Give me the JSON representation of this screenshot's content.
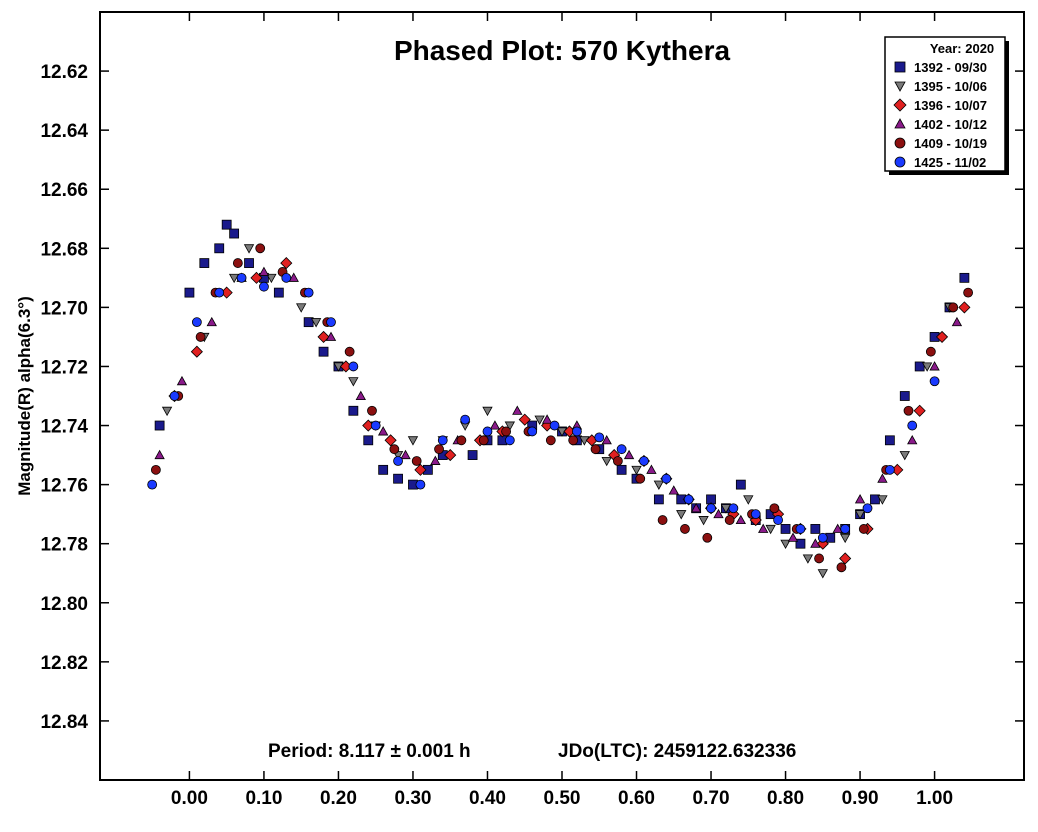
{
  "chart_data": {
    "type": "scatter",
    "title": "Phased Plot: 570 Kythera",
    "ylabel": "Magnitude(R) alpha(6.3°)",
    "xlabel": "",
    "xlim": [
      -0.12,
      1.12
    ],
    "ylim": [
      12.86,
      12.6
    ],
    "y_inverted": true,
    "grid": false,
    "x_ticks": [
      "0.00",
      "0.10",
      "0.20",
      "0.30",
      "0.40",
      "0.50",
      "0.60",
      "0.70",
      "0.80",
      "0.90",
      "1.00"
    ],
    "y_ticks": [
      "12.62",
      "12.64",
      "12.66",
      "12.68",
      "12.70",
      "12.72",
      "12.74",
      "12.76",
      "12.78",
      "12.80",
      "12.82",
      "12.84"
    ],
    "legend": {
      "position": "top-right",
      "title": "Year: 2020",
      "entries": [
        "1392 - 09/30",
        "1395 - 10/06",
        "1396 - 10/07",
        "1402 - 10/12",
        "1409 - 10/19",
        "1425 - 11/02"
      ]
    },
    "annotations": {
      "period": "Period: 8.117 ± 0.001 h",
      "epoch": "JDo(LTC): 2459122.632336"
    },
    "series": [
      {
        "name": "1392 - 09/30",
        "marker": "square",
        "color": "#1a1a8c",
        "x": [
          -0.04,
          0.0,
          0.02,
          0.04,
          0.05,
          0.06,
          0.08,
          0.1,
          0.12,
          0.16,
          0.18,
          0.2,
          0.22,
          0.24,
          0.26,
          0.28,
          0.3,
          0.32,
          0.34,
          0.38,
          0.4,
          0.42,
          0.46,
          0.5,
          0.52,
          0.55,
          0.58,
          0.6,
          0.63,
          0.66,
          0.68,
          0.7,
          0.72,
          0.74,
          0.76,
          0.78,
          0.8,
          0.82,
          0.84,
          0.86,
          0.88,
          0.9,
          0.92,
          0.94,
          0.96,
          0.98,
          1.0,
          1.02,
          1.04
        ],
        "y": [
          12.74,
          12.695,
          12.685,
          12.68,
          12.672,
          12.675,
          12.685,
          12.69,
          12.695,
          12.705,
          12.715,
          12.72,
          12.735,
          12.745,
          12.755,
          12.758,
          12.76,
          12.755,
          12.75,
          12.75,
          12.745,
          12.745,
          12.74,
          12.742,
          12.745,
          12.748,
          12.755,
          12.758,
          12.765,
          12.765,
          12.768,
          12.765,
          12.768,
          12.76,
          12.772,
          12.77,
          12.775,
          12.78,
          12.775,
          12.778,
          12.775,
          12.77,
          12.765,
          12.745,
          12.73,
          12.72,
          12.71,
          12.7,
          12.69
        ]
      },
      {
        "name": "1395 - 10/06",
        "marker": "triangle-down",
        "color": "#7a7a7a",
        "x": [
          -0.03,
          0.02,
          0.06,
          0.08,
          0.11,
          0.15,
          0.17,
          0.2,
          0.22,
          0.25,
          0.28,
          0.3,
          0.34,
          0.37,
          0.4,
          0.43,
          0.47,
          0.5,
          0.53,
          0.56,
          0.6,
          0.63,
          0.66,
          0.69,
          0.72,
          0.75,
          0.78,
          0.8,
          0.83,
          0.85,
          0.88,
          0.9,
          0.93,
          0.96,
          0.99,
          1.02
        ],
        "y": [
          12.735,
          12.71,
          12.69,
          12.68,
          12.69,
          12.7,
          12.705,
          12.72,
          12.725,
          12.74,
          12.75,
          12.745,
          12.745,
          12.74,
          12.735,
          12.74,
          12.738,
          12.742,
          12.745,
          12.752,
          12.755,
          12.76,
          12.77,
          12.772,
          12.768,
          12.765,
          12.775,
          12.78,
          12.785,
          12.79,
          12.778,
          12.77,
          12.765,
          12.75,
          12.72,
          12.7
        ]
      },
      {
        "name": "1396 - 10/07",
        "marker": "diamond",
        "color": "#e02020",
        "x": [
          -0.02,
          0.01,
          0.05,
          0.09,
          0.13,
          0.18,
          0.21,
          0.24,
          0.27,
          0.31,
          0.35,
          0.39,
          0.42,
          0.45,
          0.48,
          0.51,
          0.54,
          0.57,
          0.61,
          0.64,
          0.67,
          0.7,
          0.73,
          0.76,
          0.79,
          0.82,
          0.85,
          0.88,
          0.91,
          0.95,
          0.98,
          1.01,
          1.04
        ],
        "y": [
          12.73,
          12.715,
          12.695,
          12.69,
          12.685,
          12.71,
          12.72,
          12.74,
          12.745,
          12.755,
          12.75,
          12.745,
          12.742,
          12.738,
          12.74,
          12.742,
          12.745,
          12.75,
          12.752,
          12.758,
          12.765,
          12.768,
          12.77,
          12.772,
          12.77,
          12.775,
          12.78,
          12.785,
          12.775,
          12.755,
          12.735,
          12.71,
          12.7
        ]
      },
      {
        "name": "1402 - 10/12",
        "marker": "triangle-up",
        "color": "#8a1a8a",
        "x": [
          -0.04,
          -0.01,
          0.03,
          0.07,
          0.1,
          0.14,
          0.19,
          0.23,
          0.26,
          0.29,
          0.33,
          0.36,
          0.41,
          0.44,
          0.48,
          0.52,
          0.56,
          0.59,
          0.62,
          0.65,
          0.68,
          0.71,
          0.74,
          0.77,
          0.81,
          0.84,
          0.87,
          0.9,
          0.93,
          0.97,
          1.0,
          1.03
        ],
        "y": [
          12.75,
          12.725,
          12.705,
          12.69,
          12.688,
          12.69,
          12.71,
          12.73,
          12.742,
          12.75,
          12.752,
          12.745,
          12.74,
          12.735,
          12.738,
          12.74,
          12.745,
          12.75,
          12.755,
          12.762,
          12.768,
          12.77,
          12.772,
          12.775,
          12.778,
          12.78,
          12.775,
          12.765,
          12.758,
          12.745,
          12.72,
          12.705
        ]
      },
      {
        "name": "1409 - 10/19",
        "marker": "circle",
        "color": "#8b1010",
        "x": [
          -0.045,
          -0.015,
          0.015,
          0.035,
          0.065,
          0.095,
          0.125,
          0.155,
          0.185,
          0.215,
          0.245,
          0.275,
          0.305,
          0.335,
          0.365,
          0.395,
          0.425,
          0.455,
          0.485,
          0.515,
          0.545,
          0.575,
          0.605,
          0.635,
          0.665,
          0.695,
          0.725,
          0.755,
          0.785,
          0.815,
          0.845,
          0.875,
          0.905,
          0.935,
          0.965,
          0.995,
          1.025,
          1.045
        ],
        "y": [
          12.755,
          12.73,
          12.71,
          12.695,
          12.685,
          12.68,
          12.688,
          12.695,
          12.705,
          12.715,
          12.735,
          12.748,
          12.752,
          12.748,
          12.745,
          12.745,
          12.742,
          12.742,
          12.745,
          12.745,
          12.748,
          12.752,
          12.758,
          12.772,
          12.775,
          12.778,
          12.772,
          12.77,
          12.768,
          12.775,
          12.785,
          12.788,
          12.775,
          12.755,
          12.735,
          12.715,
          12.7,
          12.695
        ]
      },
      {
        "name": "1425 - 11/02",
        "marker": "circle",
        "color": "#1a3aff",
        "x": [
          -0.05,
          -0.02,
          0.01,
          0.04,
          0.07,
          0.1,
          0.13,
          0.16,
          0.19,
          0.22,
          0.25,
          0.28,
          0.31,
          0.34,
          0.37,
          0.4,
          0.43,
          0.46,
          0.49,
          0.52,
          0.55,
          0.58,
          0.61,
          0.64,
          0.67,
          0.7,
          0.73,
          0.76,
          0.79,
          0.82,
          0.85,
          0.88,
          0.91,
          0.94,
          0.97,
          1.0
        ],
        "y": [
          12.76,
          12.73,
          12.705,
          12.695,
          12.69,
          12.693,
          12.69,
          12.695,
          12.705,
          12.72,
          12.74,
          12.752,
          12.76,
          12.745,
          12.738,
          12.742,
          12.745,
          12.742,
          12.74,
          12.742,
          12.744,
          12.748,
          12.752,
          12.758,
          12.765,
          12.768,
          12.768,
          12.77,
          12.772,
          12.775,
          12.778,
          12.775,
          12.768,
          12.755,
          12.74,
          12.725
        ]
      }
    ]
  }
}
